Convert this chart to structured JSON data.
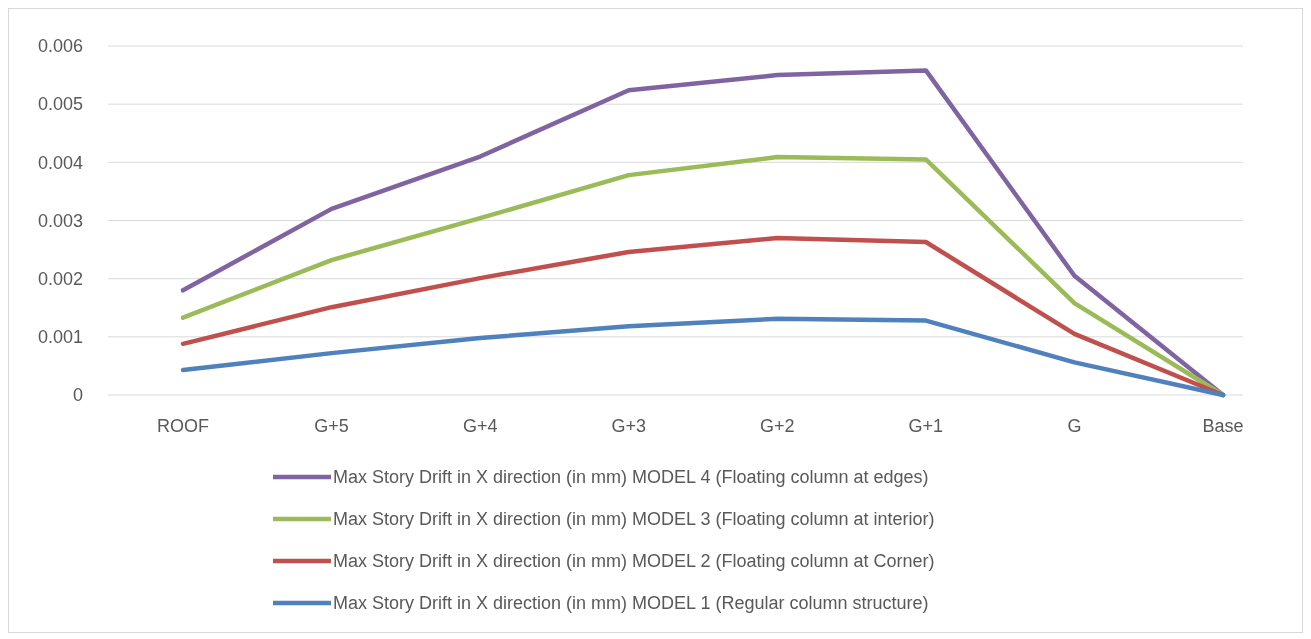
{
  "chart_data": {
    "type": "line",
    "categories": [
      "ROOF",
      "G+5",
      "G+4",
      "G+3",
      "G+2",
      "G+1",
      "G",
      "Base"
    ],
    "series": [
      {
        "name": "Max Story Drift in X direction (in mm) MODEL 4 (Floating column at edges)",
        "color": "#8064a2",
        "values": [
          0.0018,
          0.0032,
          0.0041,
          0.00524,
          0.0055,
          0.00558,
          0.00205,
          0
        ]
      },
      {
        "name": "Max Story Drift in X direction (in mm) MODEL 3 (Floating column at interior)",
        "color": "#9bbb59",
        "values": [
          0.00133,
          0.00232,
          0.00304,
          0.00378,
          0.00409,
          0.00405,
          0.00158,
          0
        ]
      },
      {
        "name": "Max Story Drift in X direction (in mm) MODEL 2 (Floating column at Corner)",
        "color": "#c0504d",
        "values": [
          0.00088,
          0.00151,
          0.00201,
          0.00246,
          0.0027,
          0.00263,
          0.00105,
          0
        ]
      },
      {
        "name": "Max Story Drift in X direction (in mm) MODEL 1 (Regular column structure)",
        "color": "#4f81bd",
        "values": [
          0.00043,
          0.00072,
          0.00098,
          0.00118,
          0.00131,
          0.00128,
          0.00056,
          0
        ]
      }
    ],
    "ylim": [
      0,
      0.006
    ],
    "yticks": [
      0,
      0.001,
      0.002,
      0.003,
      0.004,
      0.005,
      0.006
    ],
    "grid": "y",
    "legend": "bottom",
    "marker": "none",
    "line_style": "solid"
  }
}
